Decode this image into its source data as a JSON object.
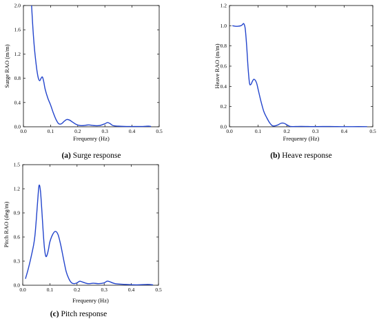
{
  "chart_data": [
    {
      "type": "line",
      "caption_letter": "(a)",
      "caption_text": " Surge response",
      "xlabel": "Frequenry (Hz)",
      "ylabel": "Surge RAO (m/m)",
      "xlim": [
        0,
        0.5
      ],
      "ylim": [
        0,
        2.0
      ],
      "xticks": [
        "0.0",
        "0.1",
        "0.2",
        "0.3",
        "0.4",
        "0.5"
      ],
      "yticks": [
        "0.0",
        "0.4",
        "0.8",
        "1.2",
        "1.6",
        "2.0"
      ],
      "line_color": "#2244cc",
      "x": [
        0.03,
        0.035,
        0.04,
        0.045,
        0.05,
        0.055,
        0.06,
        0.065,
        0.07,
        0.075,
        0.08,
        0.09,
        0.1,
        0.11,
        0.12,
        0.13,
        0.14,
        0.15,
        0.16,
        0.17,
        0.18,
        0.19,
        0.2,
        0.21,
        0.22,
        0.24,
        0.26,
        0.28,
        0.3,
        0.31,
        0.32,
        0.33,
        0.35,
        0.38,
        0.4,
        0.42,
        0.44,
        0.46,
        0.47
      ],
      "y": [
        2.0,
        1.62,
        1.32,
        1.1,
        0.92,
        0.8,
        0.76,
        0.8,
        0.82,
        0.74,
        0.62,
        0.47,
        0.36,
        0.23,
        0.12,
        0.05,
        0.05,
        0.09,
        0.12,
        0.11,
        0.08,
        0.05,
        0.03,
        0.02,
        0.02,
        0.03,
        0.02,
        0.02,
        0.05,
        0.07,
        0.05,
        0.02,
        0.01,
        0.005,
        0.005,
        0.005,
        0.005,
        0.01,
        0.005
      ]
    },
    {
      "type": "line",
      "caption_letter": "(b)",
      "caption_text": " Heave response",
      "xlabel": "Frequenry (Hz)",
      "ylabel": "Heave RAO (m/m)",
      "xlim": [
        0,
        0.5
      ],
      "ylim": [
        0,
        1.2
      ],
      "xticks": [
        "0.0",
        "0.1",
        "0.2",
        "0.3",
        "0.4",
        "0.5"
      ],
      "yticks": [
        "0.0",
        "0.2",
        "0.4",
        "0.6",
        "0.8",
        "1.0",
        "1.2"
      ],
      "line_color": "#2244cc",
      "x": [
        0.01,
        0.02,
        0.03,
        0.04,
        0.045,
        0.05,
        0.055,
        0.06,
        0.065,
        0.07,
        0.075,
        0.08,
        0.085,
        0.09,
        0.095,
        0.1,
        0.11,
        0.12,
        0.13,
        0.14,
        0.15,
        0.16,
        0.17,
        0.18,
        0.19,
        0.2,
        0.21,
        0.22,
        0.25,
        0.3,
        0.35,
        0.4,
        0.45,
        0.48
      ],
      "y": [
        1.0,
        0.995,
        0.995,
        1.0,
        1.01,
        1.02,
        0.97,
        0.8,
        0.58,
        0.43,
        0.42,
        0.45,
        0.47,
        0.46,
        0.43,
        0.37,
        0.25,
        0.15,
        0.09,
        0.04,
        0.01,
        0.01,
        0.02,
        0.035,
        0.035,
        0.02,
        0.005,
        0.002,
        0.004,
        0.002,
        0.003,
        0.001,
        0.002,
        0.001
      ]
    },
    {
      "type": "line",
      "caption_letter": "(c)",
      "caption_text": " Pitch response",
      "xlabel": "Frequenry (Hz)",
      "ylabel": "Pitch RAO (deg/m)",
      "xlim": [
        0,
        0.5
      ],
      "ylim": [
        0,
        1.5
      ],
      "xticks": [
        "0.0",
        "0.1",
        "0.2",
        "0.3",
        "0.4",
        "0.5"
      ],
      "yticks": [
        "0.0",
        "0.3",
        "0.6",
        "0.9",
        "1.2",
        "1.5"
      ],
      "line_color": "#2244cc",
      "x": [
        0.01,
        0.02,
        0.03,
        0.04,
        0.045,
        0.05,
        0.055,
        0.06,
        0.065,
        0.07,
        0.075,
        0.08,
        0.085,
        0.09,
        0.095,
        0.1,
        0.11,
        0.12,
        0.13,
        0.14,
        0.15,
        0.16,
        0.17,
        0.18,
        0.19,
        0.2,
        0.21,
        0.22,
        0.24,
        0.26,
        0.28,
        0.3,
        0.31,
        0.32,
        0.34,
        0.38,
        0.42,
        0.46,
        0.48
      ],
      "y": [
        0.08,
        0.2,
        0.34,
        0.5,
        0.62,
        0.82,
        1.05,
        1.24,
        1.18,
        0.95,
        0.68,
        0.46,
        0.36,
        0.38,
        0.45,
        0.54,
        0.63,
        0.67,
        0.63,
        0.5,
        0.33,
        0.17,
        0.08,
        0.03,
        0.02,
        0.03,
        0.05,
        0.04,
        0.02,
        0.025,
        0.02,
        0.03,
        0.05,
        0.045,
        0.02,
        0.01,
        0.005,
        0.01,
        0.005
      ]
    }
  ]
}
